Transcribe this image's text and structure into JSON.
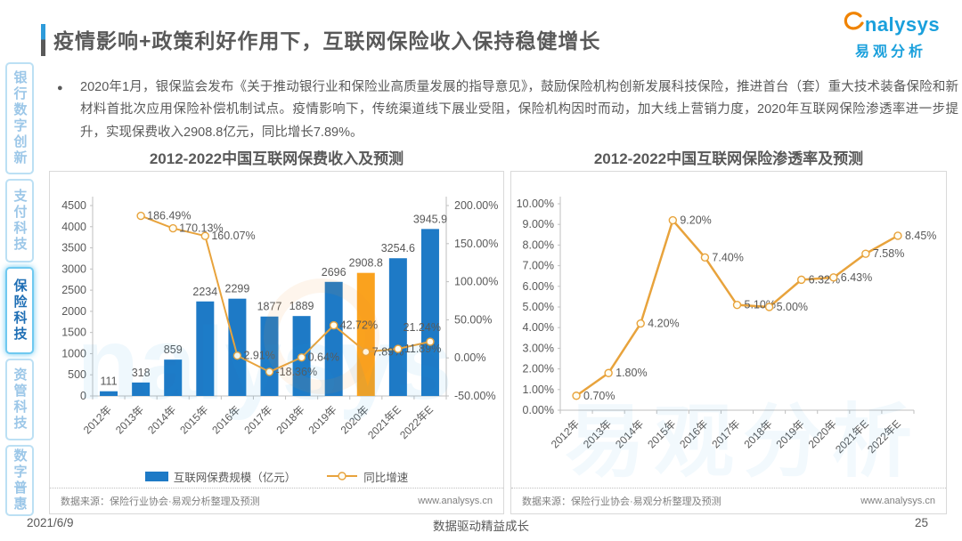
{
  "header": {
    "title": "疫情影响+政策利好作用下，互联网保险收入保持稳健增长",
    "logo": {
      "brand": "nalysys",
      "brand_cn": "易观分析",
      "brand_color": "#1AA0DC",
      "swoosh_color": "#F08300"
    }
  },
  "sidebar": {
    "items": [
      {
        "label": "银行数字创新",
        "active": false
      },
      {
        "label": "支付科技",
        "active": false
      },
      {
        "label": "保险科技",
        "active": true
      },
      {
        "label": "资管科技",
        "active": false
      },
      {
        "label": "数字普惠",
        "active": false
      }
    ]
  },
  "bullet": {
    "marker": "●",
    "text": "2020年1月，银保监会发布《关于推动银行业和保险业高质量发展的指导意见》，鼓励保险机构创新发展科技保险，推进首台（套）重大技术装备保险和新材料首批次应用保险补偿机制试点。疫情影响下，传统渠道线下展业受阻，保险机构因时而动，加大线上营销力度，2020年互联网保险渗透率进一步提升，实现保费收入2908.8亿元，同比增长7.89%。"
  },
  "chart_data": [
    {
      "type": "bar",
      "title": "2012-2022中国互联网保费收入及预测",
      "categories": [
        "2012年",
        "2013年",
        "2014年",
        "2015年",
        "2016年",
        "2017年",
        "2018年",
        "2019年",
        "2020年",
        "2021年E",
        "2022年E"
      ],
      "series": [
        {
          "name": "互联网保费规模（亿元）",
          "type": "bar",
          "values": [
            111,
            318,
            859,
            2234,
            2299,
            1877,
            1889,
            2696,
            2908.8,
            3254.6,
            3945.9
          ],
          "labels": [
            "111",
            "318",
            "859",
            "2234",
            "2299",
            "1877",
            "1889",
            "2696",
            "2908.8",
            "3254.6",
            "3945.9"
          ],
          "color": "#1E7AC6",
          "highlight_index": 8,
          "highlight_color": "#FAA21E"
        },
        {
          "name": "同比增速",
          "type": "line",
          "values": [
            null,
            186.49,
            170.13,
            160.07,
            2.91,
            -18.36,
            0.64,
            42.72,
            7.89,
            11.89,
            21.24
          ],
          "labels": [
            "",
            "186.49%",
            "170.13%",
            "160.07%",
            "2.91%",
            "-18.36%",
            "0.64%",
            "42.72%",
            "7.89%",
            "11.89%",
            "21.24%"
          ],
          "color": "#E8A33C"
        }
      ],
      "left_axis": {
        "min": 0,
        "max": 4500,
        "step": 500
      },
      "right_axis": {
        "min": -50,
        "max": 200,
        "step": 50,
        "suffix": "%"
      },
      "legend_position": "bottom",
      "grid": false,
      "source": "数据来源：保险行业协会·易观分析整理及预测",
      "url": "www.analysys.cn"
    },
    {
      "type": "line",
      "title": "2012-2022中国互联网保险渗透率及预测",
      "categories": [
        "2012年",
        "2013年",
        "2014年",
        "2015年",
        "2016年",
        "2017年",
        "2018年",
        "2019年",
        "2020年",
        "2021年E",
        "2022年E"
      ],
      "values": [
        0.7,
        1.8,
        4.2,
        9.2,
        7.4,
        5.1,
        5.0,
        6.32,
        6.43,
        7.58,
        8.45
      ],
      "labels": [
        "0.70%",
        "1.80%",
        "4.20%",
        "9.20%",
        "7.40%",
        "5.10%",
        "5.00%",
        "6.32%",
        "6.43%",
        "7.58%",
        "8.45%"
      ],
      "color": "#E8A33C",
      "y_axis": {
        "min": 0,
        "max": 10,
        "step": 1,
        "suffix": "%"
      },
      "grid": false,
      "source": "数据来源：保险行业协会·易观分析整理及预测",
      "url": "www.analysys.cn"
    }
  ],
  "footer": {
    "date": "2021/6/9",
    "slogan": "数据驱动精益成长",
    "page": "25"
  }
}
